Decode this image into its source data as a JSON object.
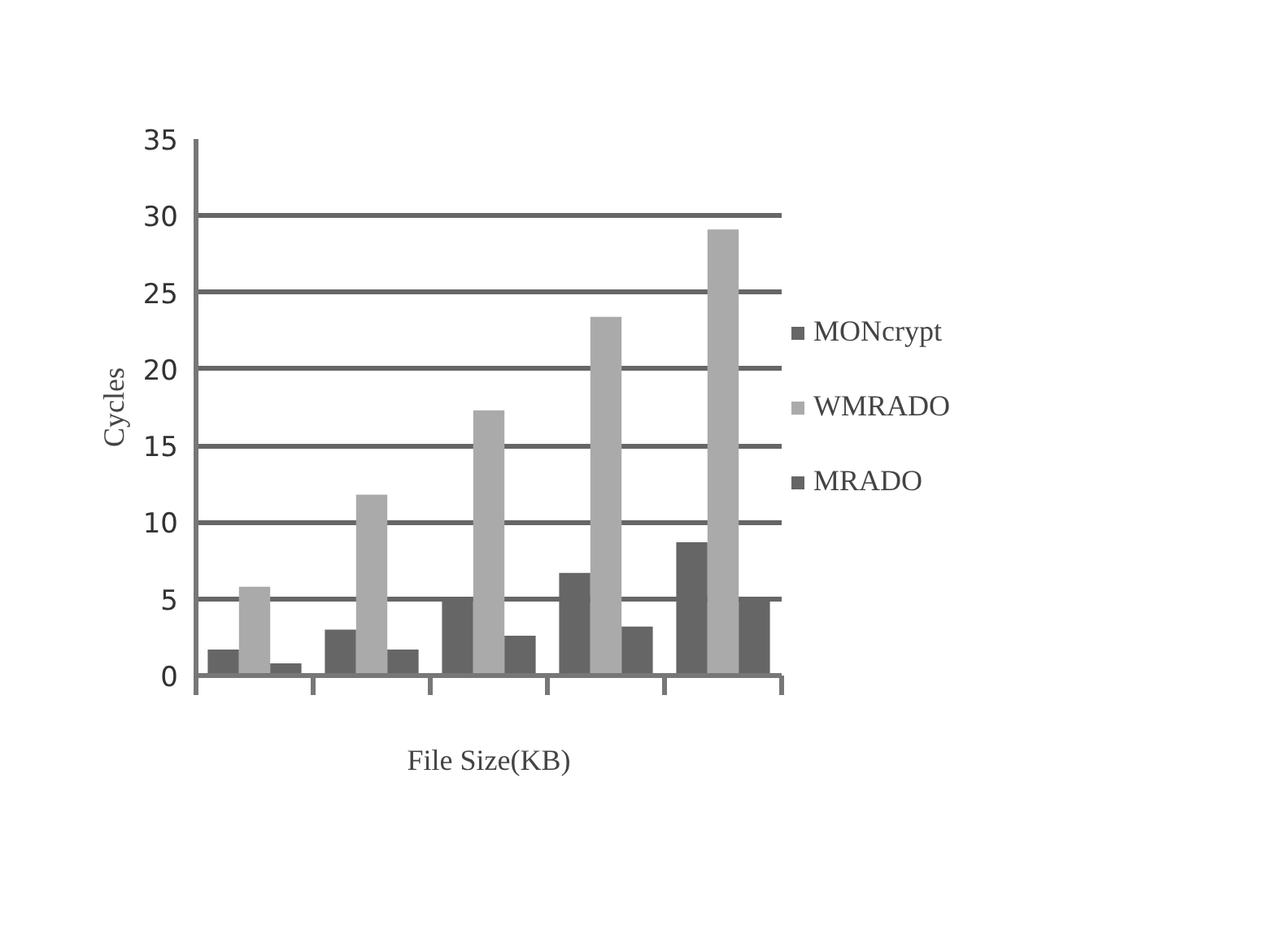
{
  "chart_data": {
    "type": "bar",
    "xlabel": "File Size(KB)",
    "ylabel": "Cycles",
    "categories": [
      null,
      null,
      null,
      null,
      null
    ],
    "series": [
      {
        "name": "MONcrypt",
        "color": "#666666",
        "values": [
          1.7,
          3.0,
          5.1,
          6.7,
          8.7
        ]
      },
      {
        "name": "WMRADO",
        "color": "#aaaaaa",
        "values": [
          5.8,
          11.8,
          17.3,
          23.4,
          29.1
        ]
      },
      {
        "name": "MRADO",
        "color": "#666666",
        "values": [
          0.8,
          1.7,
          2.6,
          3.2,
          5.0
        ]
      }
    ],
    "ylim": [
      0,
      35
    ],
    "yticks": [
      0,
      5,
      10,
      15,
      20,
      25,
      30,
      35
    ],
    "grid": "y",
    "legend": "right"
  }
}
